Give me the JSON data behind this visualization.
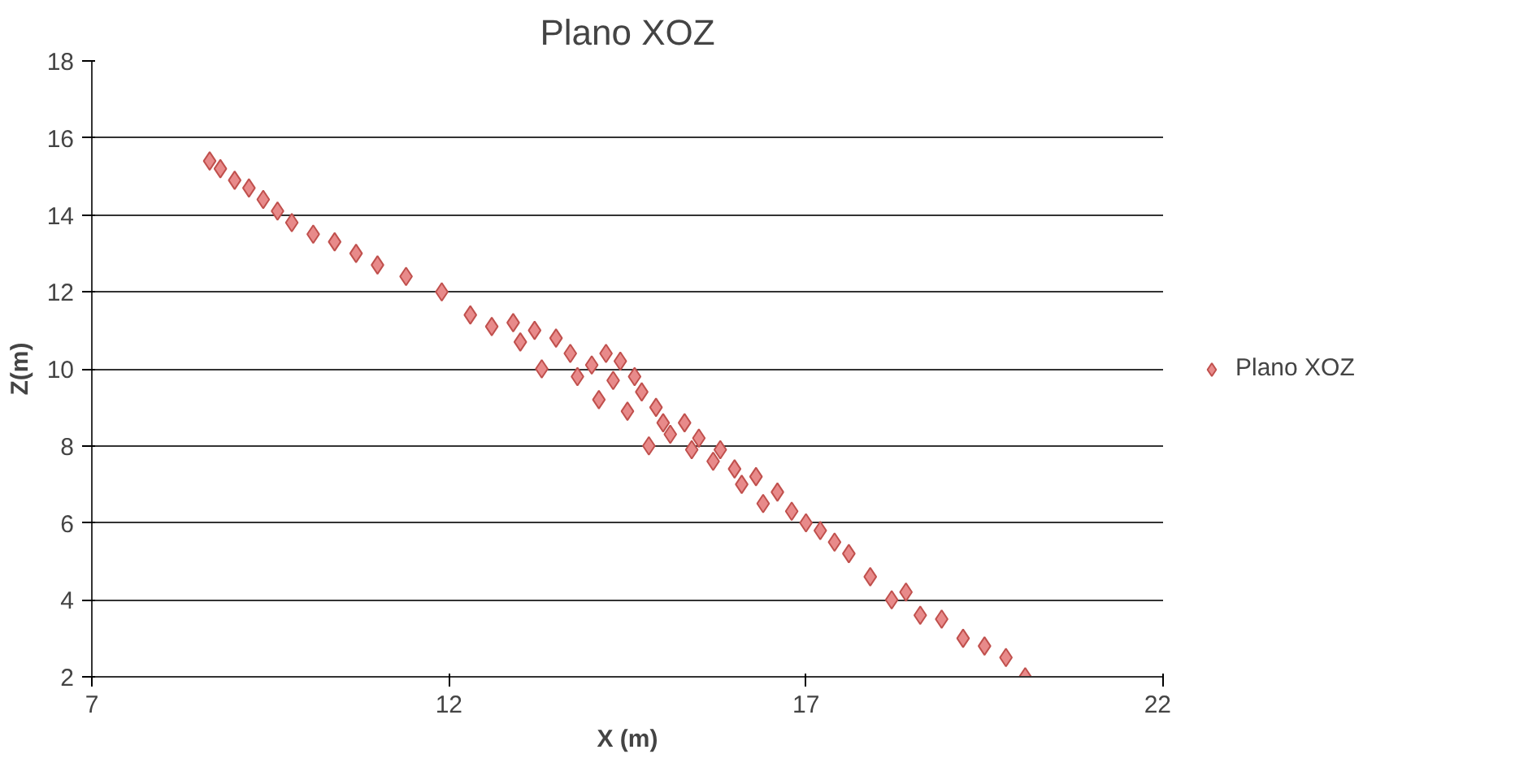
{
  "chart_data": {
    "type": "scatter",
    "title": "Plano XOZ",
    "xlabel": "X (m)",
    "ylabel": "Z(m)",
    "xlim": [
      7,
      22
    ],
    "xticks": [
      7,
      12,
      17,
      22
    ],
    "ylim": [
      2,
      18
    ],
    "yticks": [
      2,
      4,
      6,
      8,
      10,
      12,
      14,
      16,
      18
    ],
    "grid": "y",
    "legend": "right",
    "marker": "diamond",
    "series": [
      {
        "name": "Plano XOZ",
        "color": "#e88a8a",
        "x": [
          8.65,
          8.8,
          9.0,
          9.2,
          9.4,
          9.6,
          9.8,
          10.1,
          10.4,
          10.7,
          11.0,
          11.4,
          11.9,
          12.3,
          12.6,
          12.9,
          13.0,
          13.2,
          13.3,
          13.5,
          13.7,
          13.8,
          14.0,
          14.1,
          14.2,
          14.3,
          14.4,
          14.5,
          14.6,
          14.7,
          14.8,
          14.9,
          15.0,
          15.1,
          15.3,
          15.4,
          15.5,
          15.7,
          15.8,
          16.0,
          16.1,
          16.3,
          16.4,
          16.6,
          16.8,
          17.0,
          17.2,
          17.4,
          17.6,
          17.9,
          18.2,
          18.4,
          18.6,
          18.9,
          19.2,
          19.5,
          19.8,
          20.07
        ],
        "values": [
          15.4,
          15.2,
          14.9,
          14.7,
          14.4,
          14.1,
          13.8,
          13.5,
          13.3,
          13.0,
          12.7,
          12.4,
          12.0,
          11.4,
          11.1,
          11.2,
          10.7,
          11.0,
          10.0,
          10.8,
          10.4,
          9.8,
          10.1,
          9.2,
          10.4,
          9.7,
          10.2,
          8.9,
          9.8,
          9.4,
          8.0,
          9.0,
          8.6,
          8.3,
          8.6,
          7.9,
          8.2,
          7.6,
          7.9,
          7.4,
          7.0,
          7.2,
          6.5,
          6.8,
          6.3,
          6.0,
          5.8,
          5.5,
          5.2,
          4.6,
          4.0,
          4.2,
          3.6,
          3.5,
          3.0,
          2.8,
          2.5,
          2.0
        ]
      }
    ]
  }
}
